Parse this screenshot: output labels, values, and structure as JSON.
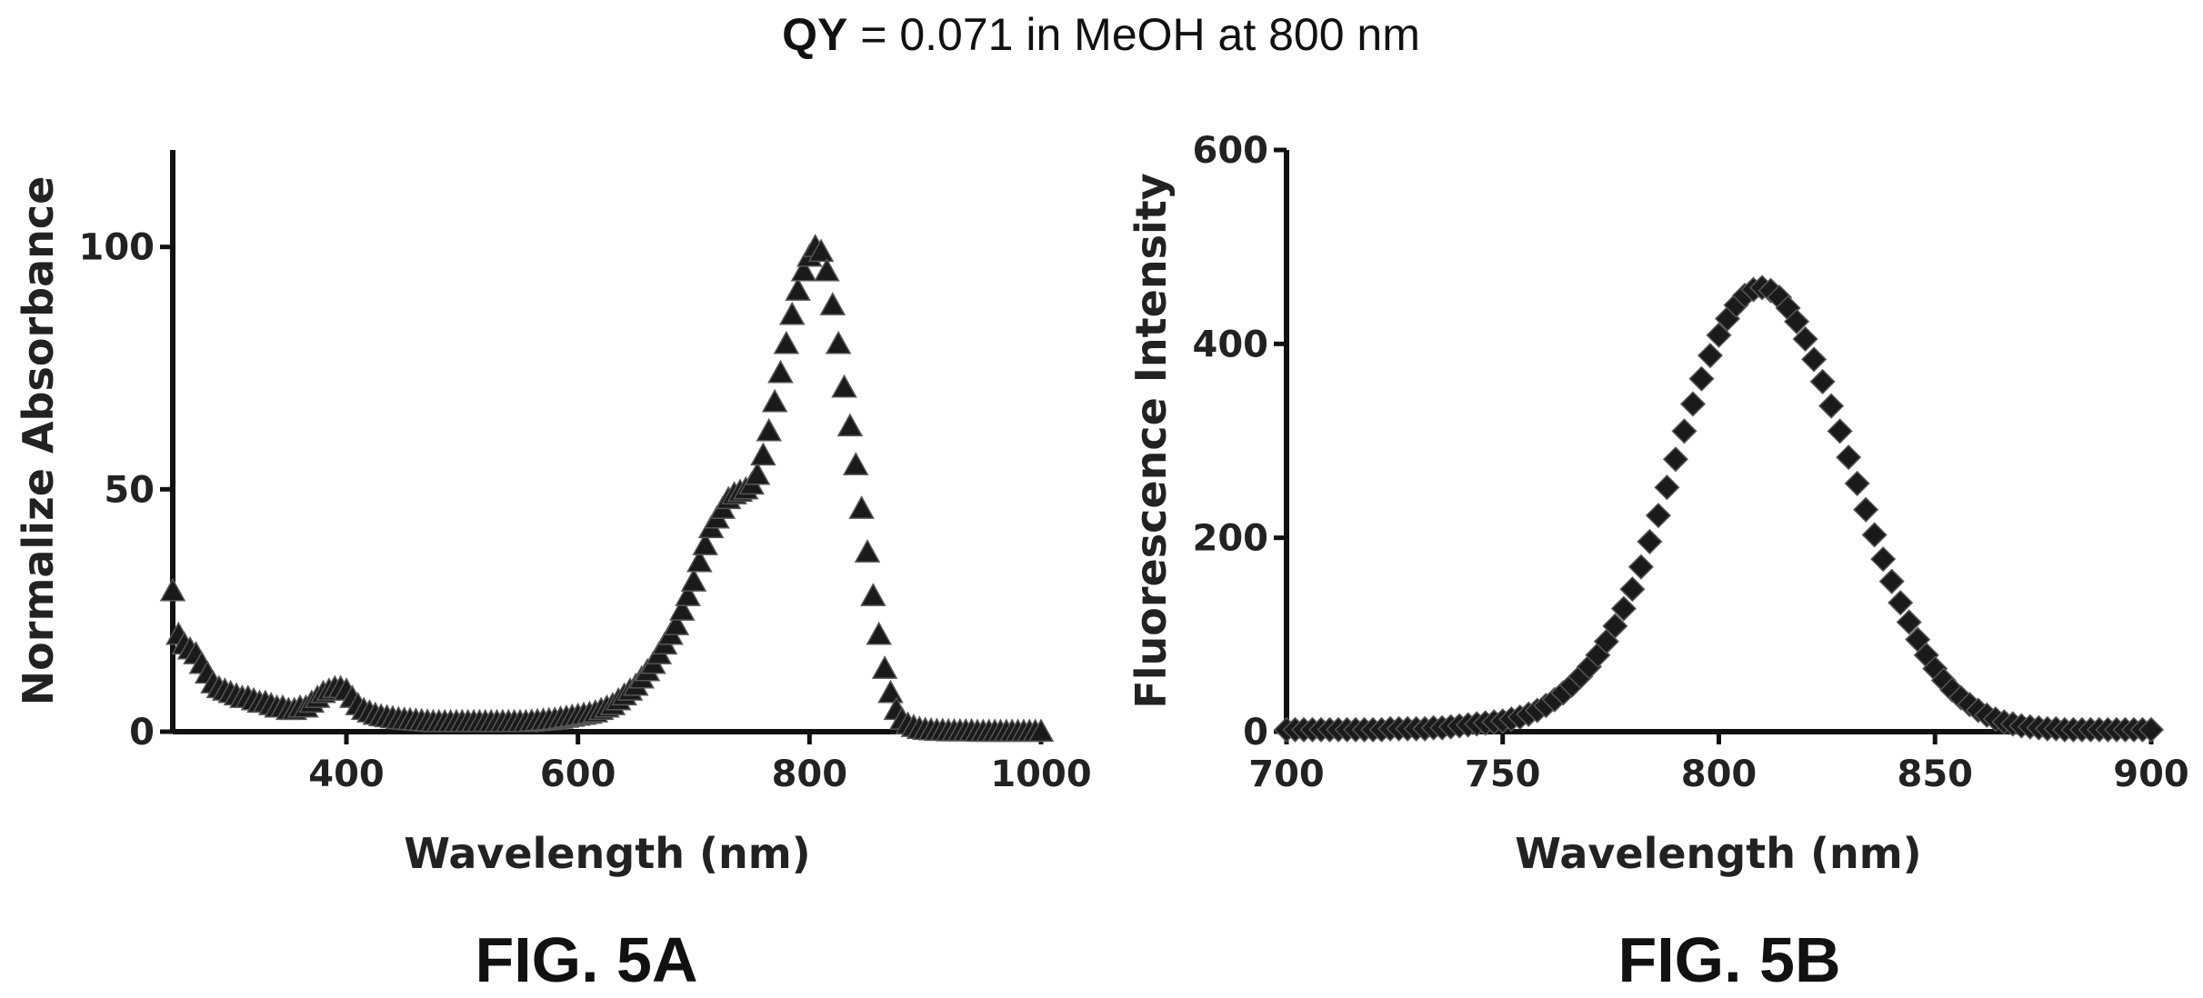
{
  "header": {
    "title_bold": "QY",
    "title_rest": " = 0.071 in MeOH at 800 nm"
  },
  "colors": {
    "marker": "#1a1a1a",
    "axis": "#111111"
  },
  "chart_data": [
    {
      "type": "scatter",
      "figure_label": "FIG. 5A",
      "marker": "triangle-up",
      "xlabel": "Wavelength (nm)",
      "ylabel": "Normalize Absorbance",
      "xlim": [
        250,
        1000
      ],
      "ylim": [
        0,
        120
      ],
      "x_ticks": [
        400,
        600,
        800,
        1000
      ],
      "y_ticks": [
        0,
        50,
        100
      ],
      "x_tick_labels": [
        "400",
        "600",
        "800",
        "1000"
      ],
      "y_tick_labels": [
        "0",
        "50",
        "100"
      ],
      "grid": false,
      "legend": "none",
      "x": [
        250,
        255,
        260,
        265,
        270,
        275,
        280,
        285,
        290,
        295,
        300,
        305,
        310,
        315,
        320,
        325,
        330,
        335,
        340,
        345,
        350,
        355,
        360,
        365,
        370,
        375,
        380,
        385,
        390,
        395,
        400,
        405,
        410,
        415,
        420,
        425,
        430,
        435,
        440,
        445,
        450,
        455,
        460,
        465,
        470,
        475,
        480,
        485,
        490,
        495,
        500,
        505,
        510,
        515,
        520,
        525,
        530,
        535,
        540,
        545,
        550,
        555,
        560,
        565,
        570,
        575,
        580,
        585,
        590,
        595,
        600,
        605,
        610,
        615,
        620,
        625,
        630,
        635,
        640,
        645,
        650,
        655,
        660,
        665,
        670,
        675,
        680,
        685,
        690,
        695,
        700,
        705,
        710,
        715,
        720,
        725,
        730,
        735,
        740,
        745,
        750,
        755,
        760,
        765,
        770,
        775,
        780,
        785,
        790,
        795,
        800,
        805,
        810,
        815,
        820,
        825,
        830,
        835,
        840,
        845,
        850,
        855,
        860,
        865,
        870,
        875,
        880,
        885,
        890,
        895,
        900,
        905,
        910,
        915,
        920,
        925,
        930,
        935,
        940,
        945,
        950,
        955,
        960,
        965,
        970,
        975,
        980,
        985,
        990,
        995,
        1000
      ],
      "y": [
        29,
        20,
        18,
        17,
        16,
        14,
        12,
        10,
        9,
        8.5,
        8,
        7.5,
        7,
        7,
        6.5,
        6,
        6,
        5.5,
        5,
        5,
        4.5,
        4.5,
        5,
        5,
        6,
        7,
        8,
        8.5,
        9,
        9,
        8.5,
        7,
        5.5,
        4.5,
        4,
        3.5,
        3.2,
        3,
        2.8,
        2.6,
        2.5,
        2.4,
        2.3,
        2.2,
        2.1,
        2,
        2,
        2,
        2,
        2,
        2,
        2,
        2,
        2,
        2,
        2,
        2,
        2,
        2,
        2,
        2,
        2,
        2.1,
        2.2,
        2.3,
        2.4,
        2.5,
        2.7,
        2.9,
        3.1,
        3.3,
        3.5,
        3.7,
        4,
        4.5,
        5,
        5.5,
        6.5,
        7.5,
        8.5,
        9.5,
        11,
        12.5,
        14,
        16,
        18,
        20,
        22,
        25,
        28,
        31,
        35,
        38.5,
        42,
        44,
        46,
        48,
        49,
        49.5,
        50,
        51,
        53,
        57,
        62,
        68,
        74,
        80,
        86,
        91,
        95,
        98,
        100,
        99,
        95,
        88,
        80,
        71,
        63,
        55,
        46,
        37,
        28,
        20,
        13,
        8,
        4.5,
        2.5,
        1.5,
        1,
        0.6,
        0.4,
        0.3,
        0.2,
        0.2,
        0.1,
        0.1,
        0.1,
        0.1,
        0.1,
        0,
        0,
        0,
        0,
        0,
        0,
        0,
        0,
        0,
        0,
        0,
        0
      ]
    },
    {
      "type": "scatter",
      "figure_label": "FIG. 5B",
      "marker": "diamond",
      "xlabel": "Wavelength (nm)",
      "ylabel": "Fluorescence Intensity",
      "xlim": [
        700,
        900
      ],
      "ylim": [
        0,
        600
      ],
      "x_ticks": [
        700,
        750,
        800,
        850,
        900
      ],
      "y_ticks": [
        0,
        200,
        400,
        600
      ],
      "x_tick_labels": [
        "700",
        "750",
        "800",
        "850",
        "900"
      ],
      "y_tick_labels": [
        "0",
        "200",
        "400",
        "600"
      ],
      "grid": false,
      "legend": "none",
      "x": [
        700,
        702,
        704,
        706,
        708,
        710,
        712,
        714,
        716,
        718,
        720,
        722,
        724,
        726,
        728,
        730,
        732,
        734,
        736,
        738,
        740,
        742,
        744,
        746,
        748,
        750,
        752,
        754,
        756,
        758,
        760,
        762,
        764,
        766,
        768,
        770,
        772,
        774,
        776,
        778,
        780,
        782,
        784,
        786,
        788,
        790,
        792,
        794,
        796,
        798,
        800,
        802,
        804,
        806,
        808,
        810,
        812,
        814,
        816,
        818,
        820,
        822,
        824,
        826,
        828,
        830,
        832,
        834,
        836,
        838,
        840,
        842,
        844,
        846,
        848,
        850,
        852,
        854,
        856,
        858,
        860,
        862,
        864,
        866,
        868,
        870,
        872,
        874,
        876,
        878,
        880,
        882,
        884,
        886,
        888,
        890,
        892,
        894,
        896,
        898,
        900
      ],
      "y": [
        2,
        2,
        2,
        2,
        2,
        2,
        2,
        2,
        2,
        2,
        2,
        2,
        3,
        3,
        3,
        3,
        3,
        4,
        4,
        5,
        6,
        7,
        8,
        9,
        10,
        11,
        13,
        15,
        18,
        22,
        27,
        33,
        40,
        48,
        57,
        67,
        79,
        93,
        109,
        127,
        147,
        170,
        196,
        223,
        252,
        281,
        310,
        338,
        364,
        388,
        409,
        426,
        440,
        450,
        456,
        458,
        455,
        448,
        437,
        423,
        405,
        384,
        361,
        336,
        310,
        283,
        256,
        229,
        203,
        178,
        155,
        133,
        113,
        95,
        79,
        65,
        53,
        43,
        35,
        28,
        22,
        17,
        13,
        10,
        8,
        6,
        5,
        4,
        3,
        3,
        2,
        2,
        2,
        2,
        2,
        2,
        2,
        2,
        2,
        2,
        2
      ]
    }
  ]
}
